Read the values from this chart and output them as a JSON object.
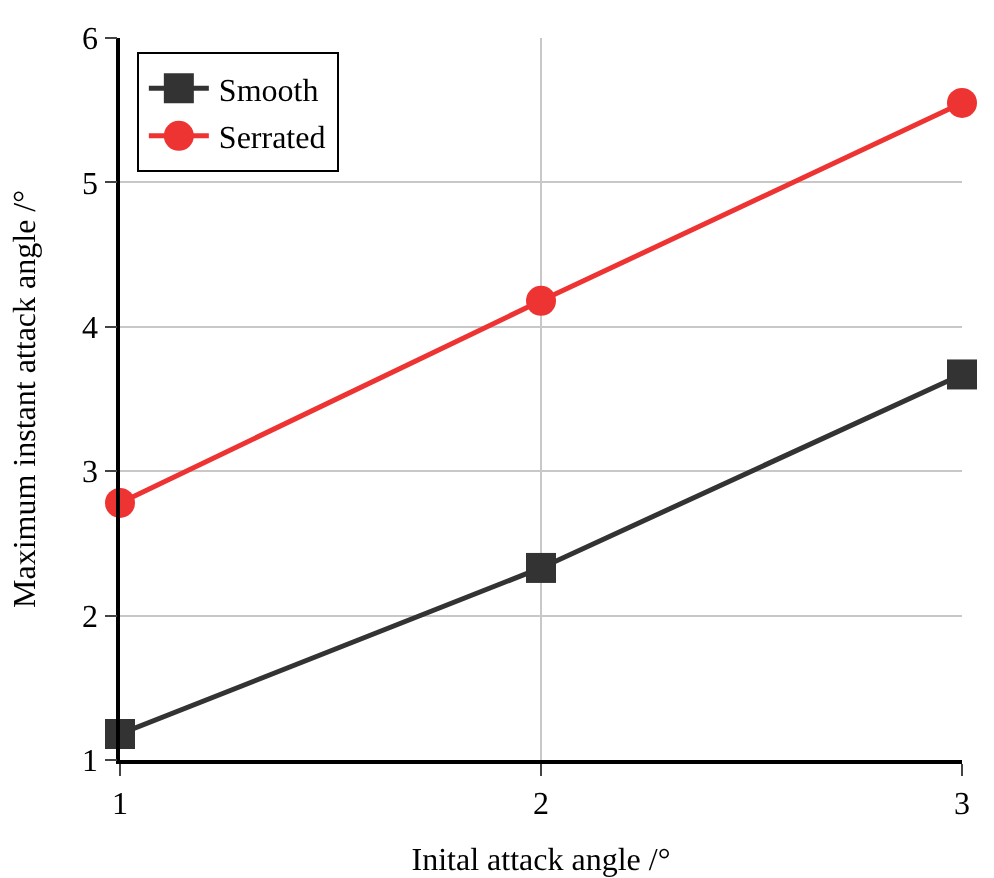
{
  "chart_data": {
    "type": "line",
    "xlabel": "Inital attack angle /°",
    "ylabel": "Maximum instant attack angle /°",
    "x": [
      1,
      2,
      3
    ],
    "series": [
      {
        "name": "Smooth",
        "color": "#333333",
        "values": [
          1.18,
          2.33,
          3.67
        ],
        "marker": "square"
      },
      {
        "name": "Serrated",
        "color": "#ee3333",
        "values": [
          2.78,
          4.18,
          5.55
        ],
        "marker": "circle"
      }
    ],
    "xlim": [
      1,
      3
    ],
    "xticks": [
      1,
      2,
      3
    ],
    "ylim": [
      1,
      6
    ],
    "yticks": [
      1,
      2,
      3,
      4,
      5,
      6
    ],
    "grid": true,
    "legend": "top left",
    "line_style": "solid"
  }
}
